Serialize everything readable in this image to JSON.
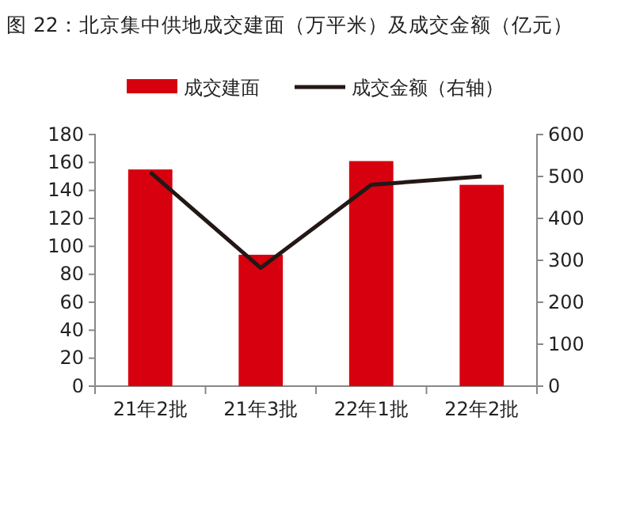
{
  "chart_data": {
    "type": "bar",
    "title": "图 22：北京集中供地成交建面（万平米）及成交金额（亿元）",
    "categories": [
      "21年2批",
      "21年3批",
      "22年1批",
      "22年2批"
    ],
    "series": [
      {
        "name": "成交建面",
        "color": "#d7000f",
        "values": [
          155,
          94,
          161,
          144
        ]
      },
      {
        "name": "成交金额（右轴）",
        "type": "line",
        "axis": "y2",
        "color": "#231815",
        "values": [
          510,
          282,
          480,
          500
        ],
        "marker": "none"
      }
    ],
    "ylim": [
      0,
      180
    ],
    "yticks": [
      0,
      20,
      40,
      60,
      80,
      100,
      120,
      140,
      160,
      180
    ],
    "y2lim": [
      0,
      600
    ],
    "y2ticks": [
      0,
      100,
      200,
      300,
      400,
      500,
      600
    ],
    "grid": false,
    "legend": "top"
  }
}
